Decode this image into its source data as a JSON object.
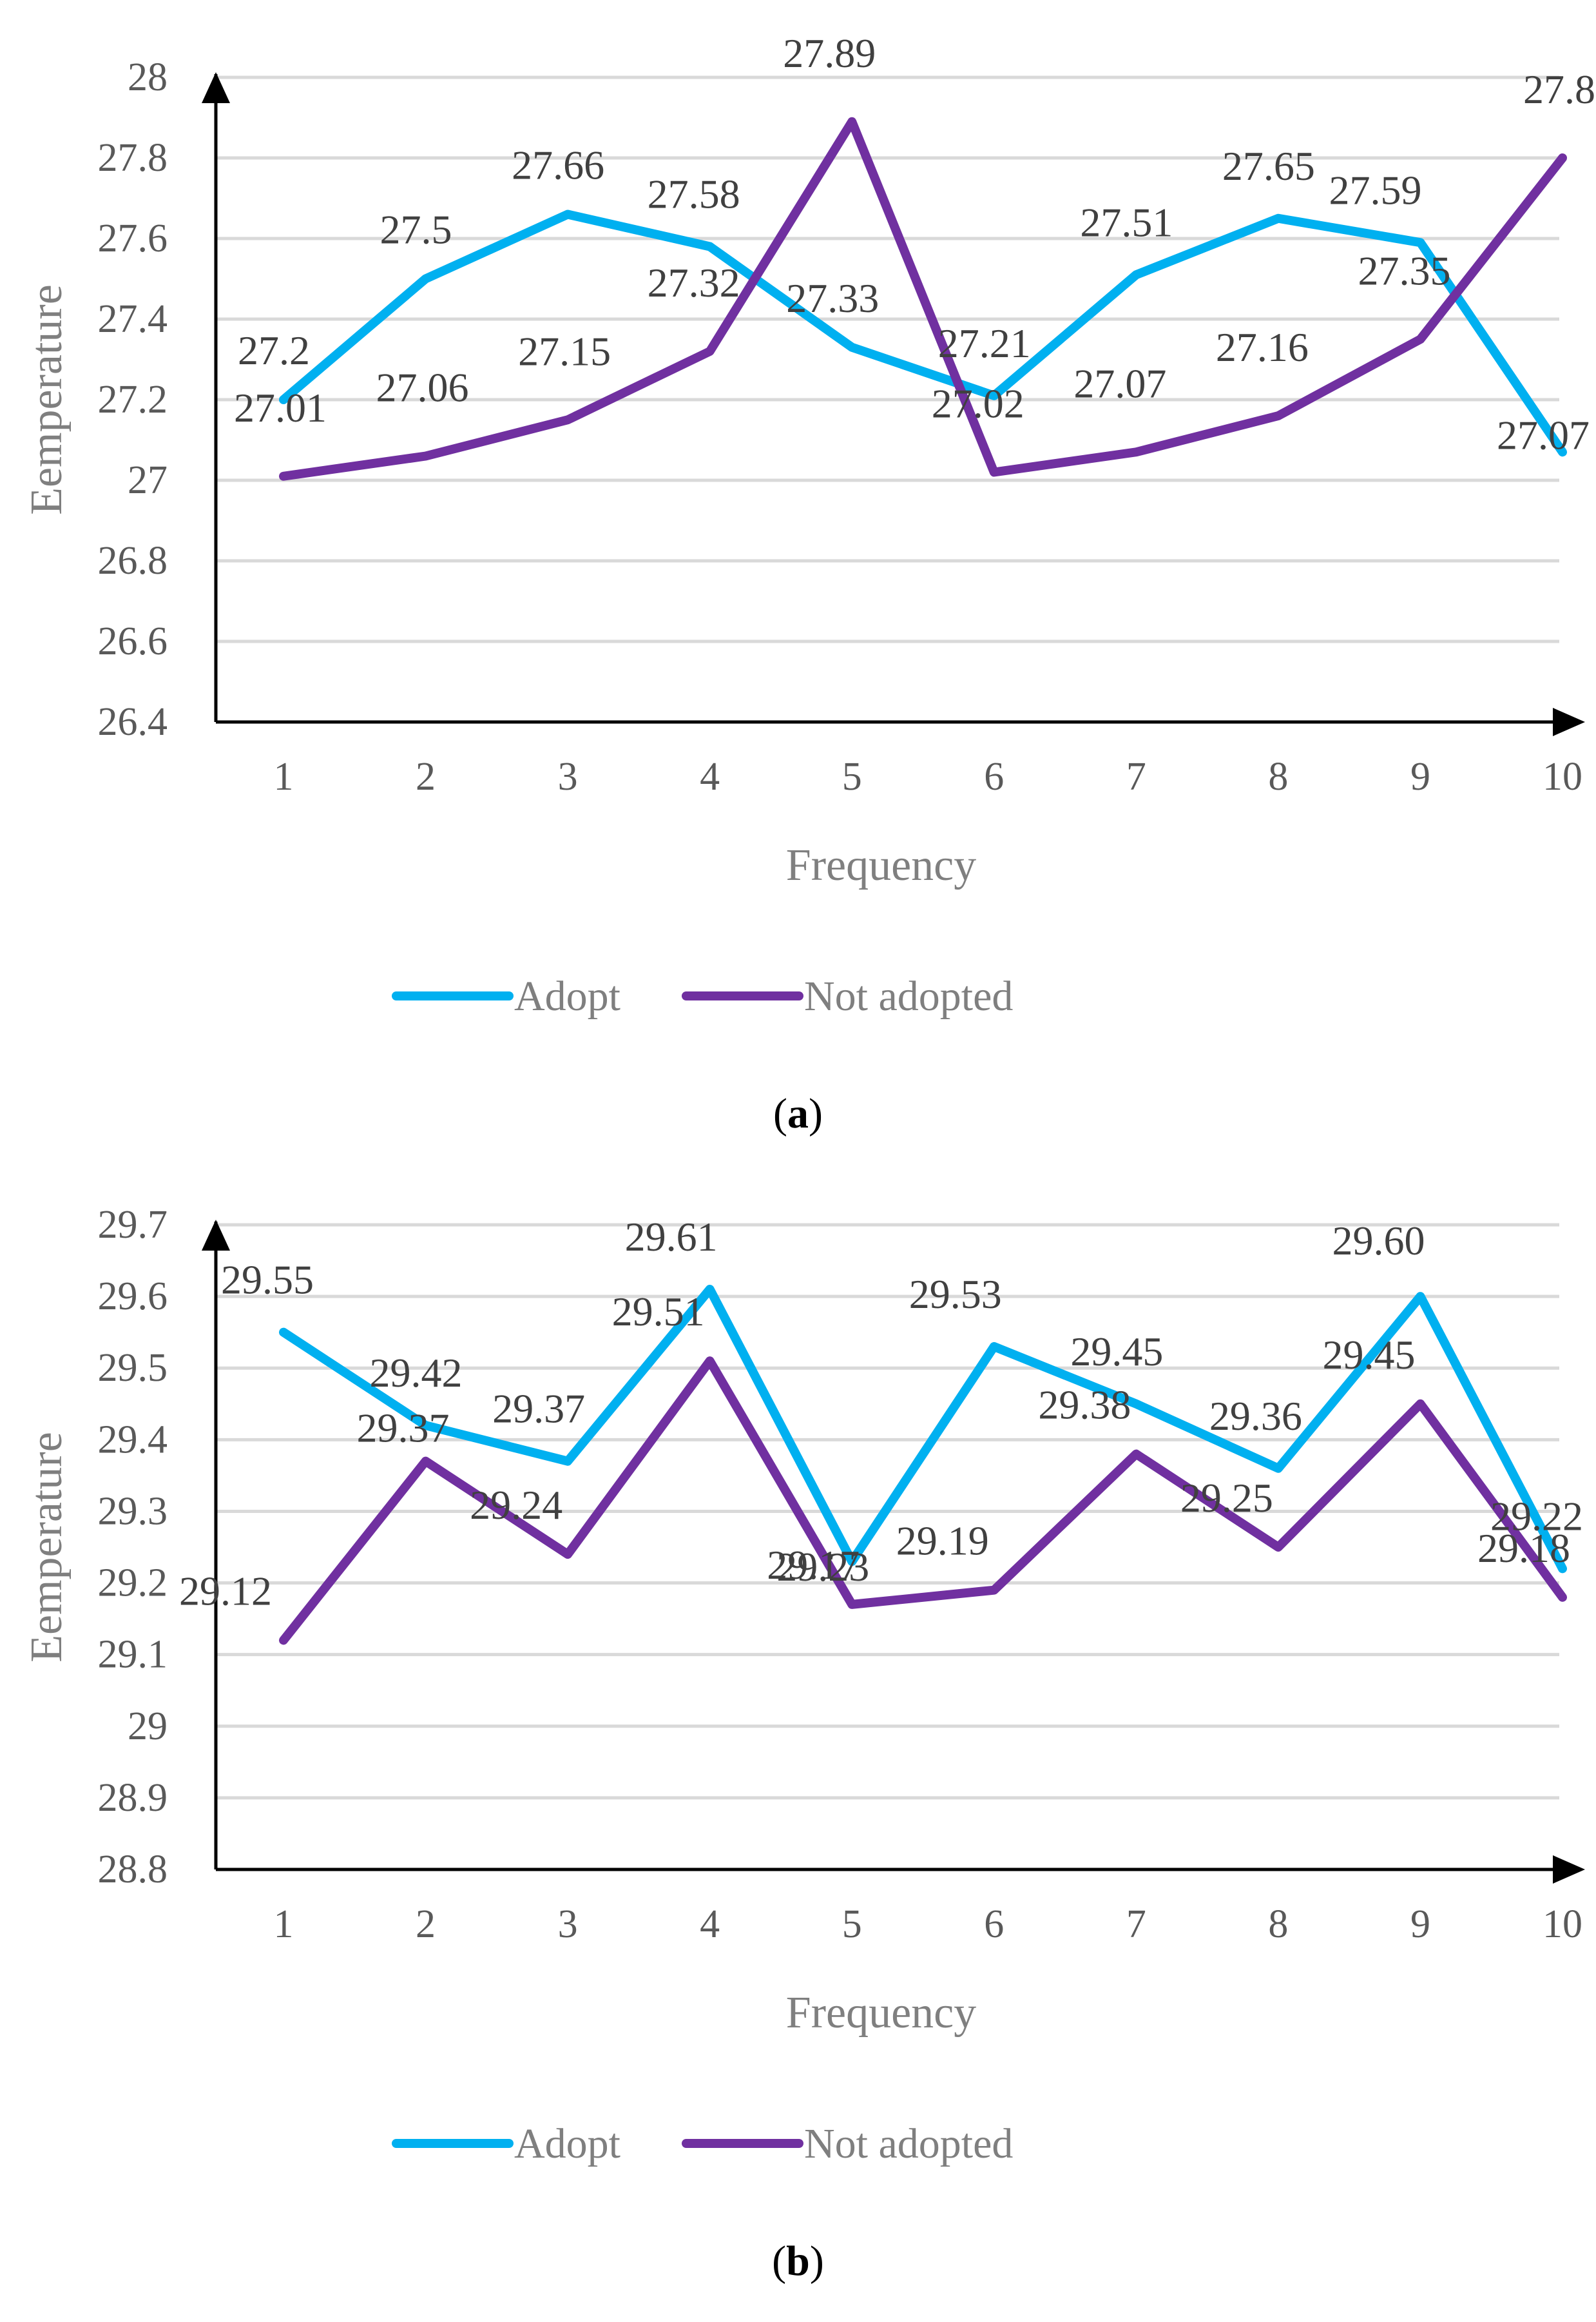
{
  "chart_data": [
    {
      "type": "line",
      "id": "a",
      "xlabel": "Frequency",
      "ylabel": "Eemperature",
      "categories": [
        "1",
        "2",
        "3",
        "4",
        "5",
        "6",
        "7",
        "8",
        "9",
        "10"
      ],
      "ylim": [
        26.4,
        28
      ],
      "yticks": [
        "26.4",
        "26.6",
        "26.8",
        "27",
        "27.2",
        "27.4",
        "27.6",
        "27.8",
        "28"
      ],
      "grid": true,
      "legend": "bottom",
      "series": [
        {
          "name": "Adopt",
          "color": "#00b0f0",
          "values": [
            27.2,
            27.5,
            27.66,
            27.58,
            27.33,
            27.21,
            27.51,
            27.65,
            27.59,
            27.07
          ],
          "labels": [
            "27.2",
            "27.5",
            "27.66",
            "27.58",
            "27.33",
            "27.21",
            "27.51",
            "27.65",
            "27.59",
            "27.07"
          ]
        },
        {
          "name": "Not adopted",
          "color": "#7030a0",
          "values": [
            27.01,
            27.06,
            27.15,
            27.32,
            27.89,
            27.02,
            27.07,
            27.16,
            27.35,
            27.8
          ],
          "labels": [
            "27.01",
            "27.06",
            "27.15",
            "27.32",
            "27.89",
            "27.02",
            "27.07",
            "27.16",
            "27.35",
            "27.8"
          ]
        }
      ],
      "caption": "a"
    },
    {
      "type": "line",
      "id": "b",
      "xlabel": "Frequency",
      "ylabel": "Eemperature",
      "categories": [
        "1",
        "2",
        "3",
        "4",
        "5",
        "6",
        "7",
        "8",
        "9",
        "10"
      ],
      "ylim": [
        28.8,
        29.7
      ],
      "yticks": [
        "28.8",
        "28.9",
        "29",
        "29.1",
        "29.2",
        "29.3",
        "29.4",
        "29.5",
        "29.6",
        "29.7"
      ],
      "grid": true,
      "legend": "bottom",
      "series": [
        {
          "name": "Adopt",
          "color": "#00b0f0",
          "values": [
            29.55,
            29.42,
            29.37,
            29.61,
            29.23,
            29.53,
            29.45,
            29.36,
            29.6,
            29.22
          ],
          "labels": [
            "29.55",
            "29.42",
            "29.37",
            "29.61",
            "29.23",
            "29.53",
            "29.45",
            "29.36",
            "29.60",
            "29.22"
          ]
        },
        {
          "name": "Not adopted",
          "color": "#7030a0",
          "values": [
            29.12,
            29.37,
            29.24,
            29.51,
            29.17,
            29.19,
            29.38,
            29.25,
            29.45,
            29.18
          ],
          "labels": [
            "29.12",
            "29.37",
            "29.24",
            "29.51",
            "29.17",
            "29.19",
            "29.38",
            "29.25",
            "29.45",
            "29.18"
          ]
        }
      ],
      "caption": "b"
    }
  ]
}
